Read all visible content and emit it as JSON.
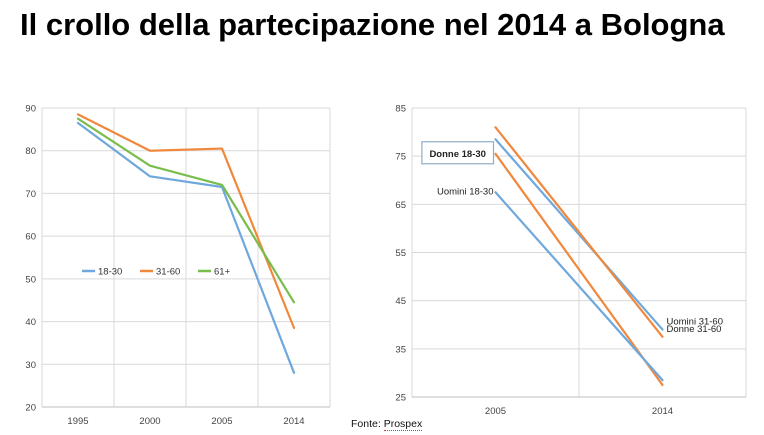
{
  "title": "Il crollo della partecipazione nel 2014 a Bologna",
  "source": {
    "prefix": "Fonte: ",
    "name": "Prospex"
  },
  "colors": {
    "series_18_30": "#6fa8dc",
    "series_31_60": "#f0883e",
    "series_61plus": "#79bd4d",
    "grid": "#d9d9d9",
    "axis": "#bfbfbf"
  },
  "chart_data": [
    {
      "type": "line",
      "x": [
        "1995",
        "2000",
        "2005",
        "2014"
      ],
      "ylim": [
        20,
        90
      ],
      "yticks": [
        20,
        30,
        40,
        50,
        60,
        70,
        80,
        90
      ],
      "grid": true,
      "legend_position": "left-center",
      "series": [
        {
          "name": "18-30",
          "color": "#6fa8dc",
          "values": [
            86.5,
            74,
            71.5,
            28
          ]
        },
        {
          "name": "31-60",
          "color": "#f0883e",
          "values": [
            88.5,
            80,
            80.5,
            38.5
          ]
        },
        {
          "name": "61+",
          "color": "#79bd4d",
          "values": [
            87.5,
            76.5,
            72,
            44.5
          ]
        }
      ]
    },
    {
      "type": "line",
      "x": [
        "2005",
        "2014"
      ],
      "ylim": [
        25,
        85
      ],
      "yticks": [
        25,
        35,
        45,
        55,
        65,
        75,
        85
      ],
      "grid": true,
      "series": [
        {
          "name": "Donne 18-30",
          "color": "#f0883e",
          "values": [
            75.5,
            27.5
          ],
          "label_position": "start",
          "boxed": true
        },
        {
          "name": "Uomini 18-30",
          "color": "#6fa8dc",
          "values": [
            67.5,
            28.5
          ],
          "label_position": "start"
        },
        {
          "name": "Uomini 31-60",
          "color": "#6fa8dc",
          "values": [
            78.5,
            39
          ],
          "label_position": "end"
        },
        {
          "name": "Donne 31-60",
          "color": "#f0883e",
          "values": [
            81,
            37.5
          ],
          "label_position": "end"
        }
      ]
    }
  ]
}
